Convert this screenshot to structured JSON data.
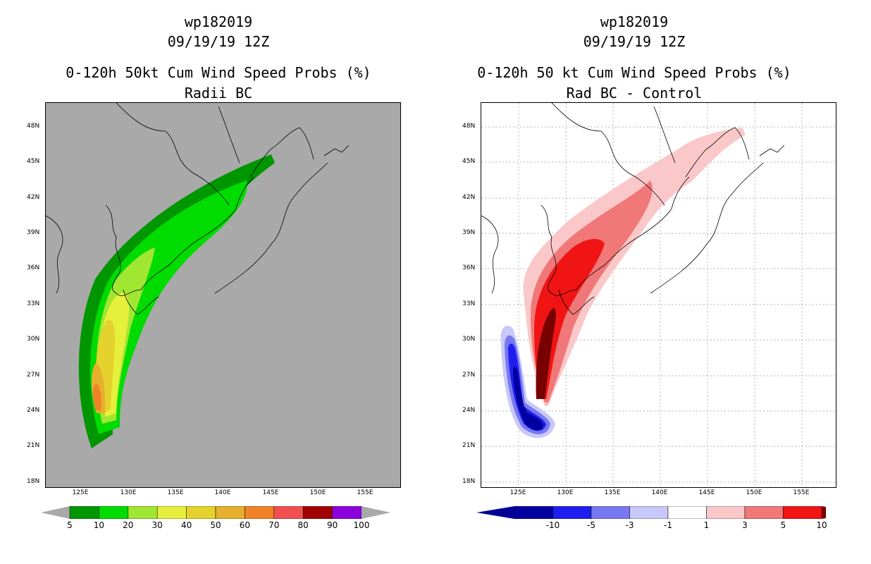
{
  "left_panel": {
    "title_lines": [
      "wp182019",
      "09/19/19 12Z",
      "0-120h 50kt Cum Wind Speed Probs (%)",
      "Radii BC"
    ],
    "lat_labels": [
      "48N",
      "45N",
      "42N",
      "39N",
      "36N",
      "33N",
      "30N",
      "27N",
      "24N",
      "21N",
      "18N"
    ],
    "lon_labels": [
      "125E",
      "130E",
      "135E",
      "140E",
      "145E",
      "150E",
      "155E"
    ],
    "background": "#a9a9a9",
    "colorbar": {
      "labels": [
        "5",
        "10",
        "20",
        "30",
        "40",
        "50",
        "60",
        "70",
        "80",
        "90",
        "100"
      ],
      "colors": [
        "#009600",
        "#00dc00",
        "#a0e632",
        "#e6f03c",
        "#e6d22d",
        "#e6af2d",
        "#f08228",
        "#f05050",
        "#a00000",
        "#8c00dc"
      ]
    }
  },
  "right_panel": {
    "title_lines": [
      "wp182019",
      "09/19/19 12Z",
      "0-120h 50 kt Cum Wind Speed Probs (%)",
      "Rad BC - Control"
    ],
    "lat_labels": [
      "48N",
      "45N",
      "42N",
      "39N",
      "36N",
      "33N",
      "30N",
      "27N",
      "24N",
      "21N",
      "18N"
    ],
    "lon_labels": [
      "125E",
      "130E",
      "135E",
      "140E",
      "145E",
      "150E",
      "155E"
    ],
    "background": "#ffffff",
    "colorbar": {
      "labels": [
        "-10",
        "-5",
        "-3",
        "-1",
        "1",
        "3",
        "5",
        "10"
      ],
      "colors": [
        "#0000a0",
        "#1e1ef0",
        "#7878f0",
        "#c8c8fa",
        "#ffffff",
        "#fac8c8",
        "#f07878",
        "#f01414"
      ],
      "end_colors": [
        "#000096",
        "#780000"
      ]
    }
  }
}
